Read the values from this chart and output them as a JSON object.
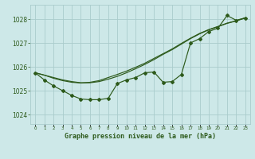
{
  "title": "Graphe pression niveau de la mer (hPa)",
  "background_color": "#cde8e8",
  "grid_color": "#aacccc",
  "line_color": "#2d5a1b",
  "x_labels": [
    "0",
    "1",
    "2",
    "3",
    "4",
    "5",
    "6",
    "7",
    "8",
    "9",
    "10",
    "11",
    "12",
    "13",
    "14",
    "15",
    "16",
    "17",
    "18",
    "19",
    "20",
    "21",
    "22",
    "23"
  ],
  "ylim": [
    1023.6,
    1028.6
  ],
  "yticks": [
    1024,
    1025,
    1026,
    1027,
    1028
  ],
  "series_jagged": [
    1025.75,
    1025.45,
    1025.2,
    1025.0,
    1024.8,
    1024.65,
    1024.62,
    1024.62,
    1024.68,
    1025.3,
    1025.45,
    1025.55,
    1025.75,
    1025.78,
    1025.35,
    1025.38,
    1025.68,
    1027.0,
    1027.18,
    1027.48,
    1027.62,
    1028.15,
    1027.95,
    1028.05
  ],
  "series_line1": [
    1025.75,
    1025.65,
    1025.55,
    1025.45,
    1025.38,
    1025.33,
    1025.33,
    1025.38,
    1025.48,
    1025.6,
    1025.75,
    1025.92,
    1026.1,
    1026.3,
    1026.52,
    1026.72,
    1026.95,
    1027.18,
    1027.38,
    1027.55,
    1027.68,
    1027.82,
    1027.92,
    1028.05
  ],
  "series_line2": [
    1025.75,
    1025.65,
    1025.52,
    1025.42,
    1025.35,
    1025.32,
    1025.35,
    1025.42,
    1025.55,
    1025.68,
    1025.82,
    1025.98,
    1026.15,
    1026.35,
    1026.55,
    1026.75,
    1026.98,
    1027.2,
    1027.4,
    1027.56,
    1027.69,
    1027.83,
    1027.93,
    1028.05
  ]
}
